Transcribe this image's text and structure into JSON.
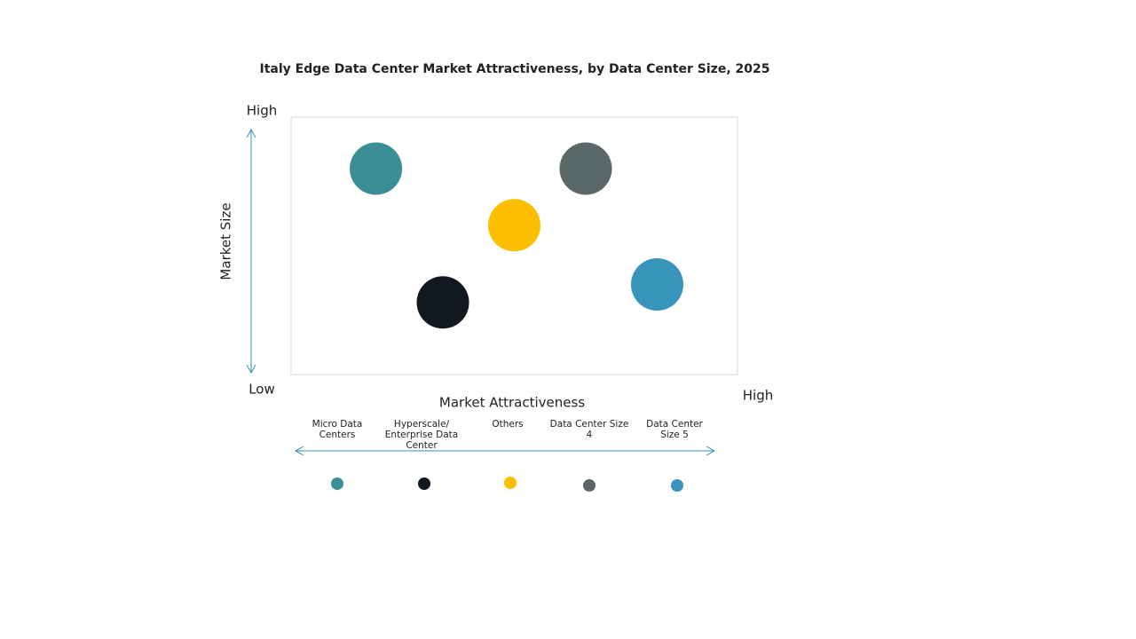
{
  "chart_data": {
    "type": "scatter",
    "title": "Italy Edge Data Center Market Attractiveness,  by Data Center Size, 2025",
    "x_label": "Market Attractiveness",
    "y_label": "Market Size",
    "xlim": [
      0,
      10
    ],
    "ylim": [
      0,
      10
    ],
    "xticks": [
      {
        "value": 10,
        "label": "High"
      }
    ],
    "yticks": [
      {
        "value": 0,
        "label": "Low"
      },
      {
        "value": 10,
        "label": "High"
      }
    ],
    "series": [
      {
        "name": "Micro Data Centers",
        "color": "#3a8f96",
        "x": [
          1.9
        ],
        "y": [
          8.0
        ]
      },
      {
        "name": "Hyperscale/ Enterprise Data Center",
        "color": "#111820",
        "x": [
          3.4
        ],
        "y": [
          2.8
        ]
      },
      {
        "name": "Others",
        "color": "#fbbf00",
        "x": [
          5.0
        ],
        "y": [
          5.8
        ]
      },
      {
        "name": "Data Center Size 4",
        "color": "#5b6868",
        "x": [
          6.6
        ],
        "y": [
          8.0
        ]
      },
      {
        "name": "Data Center Size 5",
        "color": "#3894bb",
        "x": [
          8.2
        ],
        "y": [
          3.5
        ]
      }
    ]
  }
}
